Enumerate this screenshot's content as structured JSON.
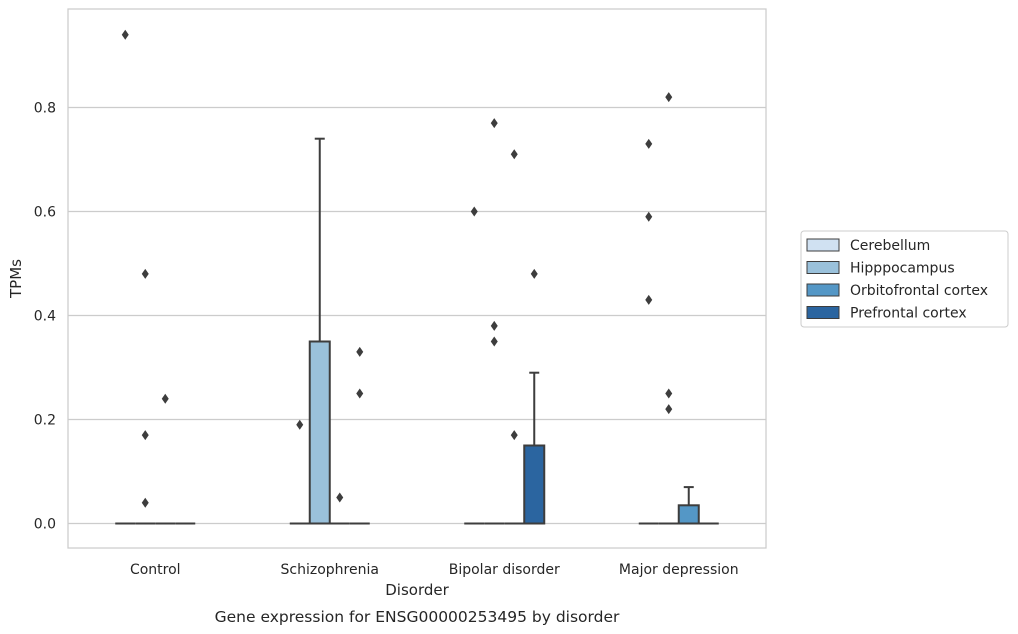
{
  "chart_data": {
    "type": "box",
    "caption": "Gene expression for ENSG00000253495 by disorder",
    "xlabel": "Disorder",
    "ylabel": "TPMs",
    "ylim": [
      -0.045,
      0.99
    ],
    "yticks": [
      0.0,
      0.2,
      0.4,
      0.6,
      0.8
    ],
    "ytick_labels": [
      "0.0",
      "0.2",
      "0.4",
      "0.6",
      "0.8"
    ],
    "grid": "horizontal",
    "legend_position": "right",
    "categories": [
      "Control",
      "Schizophrenia",
      "Bipolar disorder",
      "Major depression"
    ],
    "series": [
      {
        "name": "Cerebellum",
        "color": "#d0e1f2",
        "boxes": [
          {
            "q1": 0,
            "median": 0,
            "q3": 0,
            "whisker_low": 0,
            "whisker_high": 0,
            "outliers": [
              0.94
            ]
          },
          {
            "q1": 0,
            "median": 0,
            "q3": 0,
            "whisker_low": 0,
            "whisker_high": 0,
            "outliers": [
              0.19
            ]
          },
          {
            "q1": 0,
            "median": 0,
            "q3": 0,
            "whisker_low": 0,
            "whisker_high": 0,
            "outliers": [
              0.6
            ]
          },
          {
            "q1": 0,
            "median": 0,
            "q3": 0,
            "whisker_low": 0,
            "whisker_high": 0,
            "outliers": [
              0.73,
              0.59,
              0.43
            ]
          }
        ]
      },
      {
        "name": "Hipppocampus",
        "color": "#9ac1db",
        "boxes": [
          {
            "q1": 0,
            "median": 0,
            "q3": 0,
            "whisker_low": 0,
            "whisker_high": 0,
            "outliers": [
              0.48,
              0.17,
              0.04
            ]
          },
          {
            "q1": 0,
            "median": 0,
            "q3": 0.35,
            "whisker_low": 0,
            "whisker_high": 0.74,
            "outliers": []
          },
          {
            "q1": 0,
            "median": 0,
            "q3": 0,
            "whisker_low": 0,
            "whisker_high": 0,
            "outliers": [
              0.77,
              0.38,
              0.35
            ]
          },
          {
            "q1": 0,
            "median": 0,
            "q3": 0,
            "whisker_low": 0,
            "whisker_high": 0,
            "outliers": [
              0.82,
              0.25,
              0.22
            ]
          }
        ]
      },
      {
        "name": "Orbitofrontal cortex",
        "color": "#5497c6",
        "boxes": [
          {
            "q1": 0,
            "median": 0,
            "q3": 0,
            "whisker_low": 0,
            "whisker_high": 0,
            "outliers": [
              0.24
            ]
          },
          {
            "q1": 0,
            "median": 0,
            "q3": 0,
            "whisker_low": 0,
            "whisker_high": 0,
            "outliers": [
              0.05
            ]
          },
          {
            "q1": 0,
            "median": 0,
            "q3": 0,
            "whisker_low": 0,
            "whisker_high": 0,
            "outliers": [
              0.71,
              0.17
            ]
          },
          {
            "q1": 0,
            "median": 0,
            "q3": 0.035,
            "whisker_low": 0,
            "whisker_high": 0.07,
            "outliers": []
          }
        ]
      },
      {
        "name": "Prefrontal cortex",
        "color": "#2b65a0",
        "boxes": [
          {
            "q1": 0,
            "median": 0,
            "q3": 0,
            "whisker_low": 0,
            "whisker_high": 0,
            "outliers": []
          },
          {
            "q1": 0,
            "median": 0,
            "q3": 0,
            "whisker_low": 0,
            "whisker_high": 0,
            "outliers": [
              0.33,
              0.25
            ]
          },
          {
            "q1": 0,
            "median": 0,
            "q3": 0.15,
            "whisker_low": 0,
            "whisker_high": 0.29,
            "outliers": [
              0.48
            ]
          },
          {
            "q1": 0,
            "median": 0,
            "q3": 0,
            "whisker_low": 0,
            "whisker_high": 0,
            "outliers": []
          }
        ]
      }
    ]
  }
}
